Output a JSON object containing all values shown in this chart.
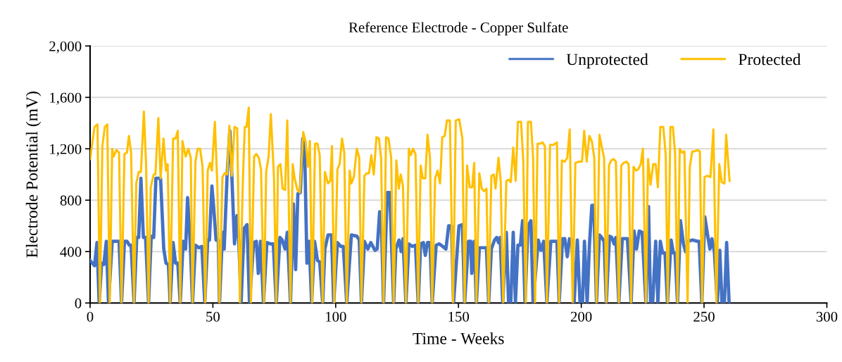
{
  "chart_data": {
    "type": "line",
    "title": "Reference Electrode - Copper Sulfate",
    "xlabel": "Time - Weeks",
    "ylabel": "Electrode Potential (mV)",
    "xlim": [
      0,
      300
    ],
    "xticks": [
      0,
      50,
      100,
      150,
      200,
      250,
      300
    ],
    "ylim": [
      0,
      2000
    ],
    "yticks": [
      0,
      400,
      800,
      {
        "value": 1200,
        "label": "1,200"
      },
      {
        "value": 1600,
        "label": "1,600"
      },
      {
        "value": 2000,
        "label": "2,000"
      }
    ],
    "grid": "y",
    "legend": "top right",
    "line_style": "solid",
    "marker": "none",
    "series": [
      {
        "name": "Unprotected",
        "color": "#4472c4",
        "x": [
          0,
          1.8,
          2.8,
          3.7,
          4.7,
          5.6,
          6.6,
          7.5,
          9,
          10.2,
          11.8,
          12.8,
          14,
          15,
          16,
          16.7,
          17.9,
          19,
          19.8,
          20.7,
          21.7,
          22.6,
          23.8,
          24.9,
          25.9,
          26.8,
          28.7,
          30,
          30.9,
          31.9,
          32.6,
          33.8,
          34.8,
          35.7,
          36.7,
          37.9,
          38.9,
          39.7,
          40.8,
          41.7,
          42.9,
          44.3,
          45.5,
          46.7,
          47.9,
          48.6,
          49.6,
          50.3,
          51.3,
          52.2,
          52.7,
          53.9,
          54.6,
          55.8,
          56.9,
          57.7,
          58.8,
          59.8,
          60.6,
          61.5,
          62.7,
          63.9,
          64.9,
          66.6,
          67.7,
          68.5,
          69.4,
          70.6,
          72,
          73.4,
          74.6,
          75.8,
          77.3,
          78.2,
          79.4,
          80.3,
          81.6,
          82.8,
          83.7,
          84.6,
          85.6,
          86.6,
          87.3,
          88.3,
          89.2,
          90.2,
          91.4,
          92.6,
          93.5,
          94.7,
          95.6,
          96.9,
          98.3,
          99.2,
          100.7,
          102.1,
          103.1,
          104.5,
          106.4,
          108.6,
          109.6,
          110.5,
          111.7,
          113.1,
          114.3,
          116,
          116.9,
          117.9,
          118.5,
          119.5,
          121,
          122,
          123.6,
          124.5,
          125.8,
          126.7,
          127.4,
          128.6,
          129.8,
          131.2,
          132.5,
          133.6,
          134.6,
          135.7,
          136.5,
          137.4,
          138.4,
          139.3,
          140.9,
          142.2,
          143.6,
          144.9,
          146,
          147.2,
          148,
          150.2,
          151.6,
          152.5,
          154.1,
          155,
          155.4,
          156.4,
          157.3,
          158.5,
          161.4,
          162.3,
          163.4,
          164.7,
          165.6,
          166.3,
          167,
          168,
          169.5,
          170.4,
          171.3,
          172.3,
          173.2,
          174.2,
          175.2,
          176.1,
          177.1,
          178.3,
          179.5,
          180.4,
          182.5,
          183.6,
          184.7,
          186,
          187.6,
          190.1,
          191,
          192.4,
          193.3,
          194.3,
          195.2,
          196.2,
          197.1,
          198.4,
          199.5,
          200.5,
          201.3,
          202.4,
          203.3,
          204.3,
          205.1,
          206.2,
          207.4,
          208.3,
          209.3,
          210.2,
          211.5,
          212.4,
          213.4,
          214.1,
          215.3,
          216.7,
          218.8,
          220.3,
          221.5,
          222.5,
          223.6,
          224.8,
          226.3,
          227.4,
          228.2,
          229.1,
          230.3,
          231.2,
          232.2,
          233.1,
          234.1,
          235.1,
          236.6,
          237.5,
          238.2,
          239.2,
          240.4,
          241.6,
          242.5,
          243.5,
          245.3,
          247.3,
          248,
          249.1,
          250.3,
          251.6,
          252.4,
          253.2,
          254.2,
          255.4,
          256.4,
          257.3,
          258.3,
          259.2,
          260.2
        ],
        "values": [
          330,
          290,
          470,
          0,
          310,
          300,
          480,
          0,
          480,
          480,
          480,
          0,
          480,
          480,
          450,
          450,
          0,
          510,
          510,
          970,
          510,
          510,
          0,
          520,
          510,
          970,
          970,
          420,
          310,
          300,
          0,
          470,
          310,
          310,
          0,
          480,
          420,
          820,
          460,
          0,
          450,
          430,
          440,
          0,
          490,
          490,
          910,
          750,
          490,
          490,
          0,
          550,
          420,
          1000,
          1340,
          1000,
          460,
          680,
          460,
          0,
          580,
          610,
          0,
          470,
          480,
          230,
          480,
          0,
          470,
          460,
          460,
          0,
          510,
          490,
          420,
          550,
          0,
          770,
          260,
          850,
          860,
          1280,
          1260,
          310,
          480,
          0,
          480,
          330,
          320,
          0,
          420,
          530,
          530,
          0,
          470,
          440,
          440,
          0,
          530,
          520,
          490,
          0,
          480,
          420,
          470,
          410,
          420,
          710,
          700,
          0,
          860,
          860,
          0,
          420,
          490,
          400,
          500,
          0,
          460,
          440,
          450,
          0,
          460,
          470,
          370,
          470,
          470,
          0,
          450,
          460,
          440,
          420,
          600,
          600,
          0,
          600,
          610,
          0,
          480,
          480,
          230,
          480,
          0,
          430,
          430,
          0,
          420,
          490,
          510,
          470,
          510,
          0,
          550,
          0,
          0,
          550,
          0,
          450,
          450,
          640,
          0,
          600,
          640,
          0,
          490,
          410,
          480,
          0,
          480,
          480,
          0,
          500,
          500,
          360,
          500,
          490,
          0,
          490,
          0,
          0,
          480,
          0,
          440,
          760,
          760,
          0,
          530,
          510,
          480,
          0,
          520,
          510,
          460,
          510,
          0,
          500,
          500,
          0,
          560,
          420,
          560,
          550,
          0,
          750,
          0,
          0,
          480,
          0,
          480,
          390,
          390,
          0,
          490,
          390,
          390,
          0,
          640,
          460,
          400,
          480,
          490,
          480,
          480,
          0,
          670,
          510,
          420,
          500,
          400,
          0,
          410,
          0,
          0,
          470,
          0
        ]
      },
      {
        "name": "Protected",
        "color": "#ffc000",
        "x": [
          0,
          1.8,
          3,
          4,
          5,
          6,
          7,
          8,
          9,
          9.6,
          10.7,
          11.8,
          12.8,
          14,
          15,
          15.8,
          16.7,
          17.9,
          18.8,
          19.8,
          20.7,
          21.9,
          22.8,
          23.8,
          24.7,
          25.9,
          26.6,
          27.8,
          28.7,
          29.9,
          30.9,
          31.6,
          32.6,
          33.8,
          34.8,
          35.7,
          36.7,
          37.6,
          38.9,
          40,
          41,
          41.7,
          42.9,
          43.8,
          44.8,
          45.8,
          46.9,
          47.9,
          48.8,
          49.6,
          50.8,
          51.8,
          52.7,
          53.9,
          54.8,
          55.8,
          56.7,
          57.7,
          58.8,
          59.9,
          61,
          62.2,
          63,
          63.7,
          64.6,
          65.5,
          66.8,
          67.7,
          68.7,
          69.6,
          70.8,
          71.7,
          72.7,
          73.6,
          74.9,
          75.8,
          76.5,
          77.5,
          78.4,
          79.4,
          80.3,
          81.6,
          82.5,
          83.3,
          84.4,
          85.4,
          86.8,
          87.8,
          88.7,
          89.5,
          90.4,
          91.6,
          92.6,
          93.5,
          94.7,
          95.6,
          96.9,
          97.8,
          98.5,
          99.4,
          100.7,
          101.6,
          102.6,
          103.5,
          104.5,
          105.7,
          106.4,
          107.4,
          108.6,
          109.6,
          110.5,
          111.7,
          112.6,
          113.6,
          114.5,
          115.5,
          116.6,
          117.6,
          118.5,
          119.5,
          120.5,
          121.5,
          122.6,
          123.6,
          124.7,
          125.7,
          126.5,
          127.4,
          128.6,
          129.8,
          130.6,
          131.5,
          132.5,
          133.6,
          134.6,
          135.5,
          136.5,
          137.4,
          138.4,
          139.3,
          140.5,
          141.5,
          142.5,
          143.4,
          144.4,
          145.3,
          146.5,
          147.8,
          148.9,
          150.3,
          151.6,
          152.5,
          153.5,
          154.6,
          155.6,
          156.4,
          157.3,
          158.5,
          159.5,
          160.4,
          161.4,
          162.3,
          163.4,
          164.4,
          165.1,
          166.3,
          167.2,
          168.2,
          169.5,
          170.4,
          171.3,
          172.3,
          173.3,
          174.2,
          175.5,
          176.4,
          177.4,
          178.3,
          179.5,
          180.4,
          181.2,
          182.2,
          183.3,
          184.2,
          185.2,
          186,
          187.3,
          188.6,
          190.1,
          191,
          192.1,
          193.3,
          194.3,
          195.3,
          196.5,
          197.6,
          199,
          199.5,
          200.3,
          201.2,
          202.2,
          203.3,
          204.3,
          205.3,
          206.2,
          207.4,
          208.3,
          209.3,
          210.2,
          211.3,
          212.2,
          213.2,
          214.1,
          215.3,
          216.3,
          217.2,
          218.4,
          219.3,
          220.3,
          221.3,
          222.3,
          223.2,
          224.2,
          225.1,
          226.3,
          227.2,
          228.2,
          229.3,
          230.3,
          231.2,
          232.2,
          233.4,
          234.4,
          235.2,
          236.3,
          237.3,
          238.2,
          239.2,
          240.1,
          241.1,
          242,
          243.3,
          244.2,
          245.2,
          246.1,
          247.3,
          248.3,
          249.2,
          250.2,
          251.3,
          252.6,
          253.8,
          255,
          256.2,
          257.2,
          258.3,
          259,
          260.4
        ],
        "values": [
          1120,
          1370,
          1390,
          0,
          1220,
          1370,
          1390,
          0,
          1200,
          1140,
          1190,
          1170,
          0,
          1160,
          1170,
          1300,
          1170,
          0,
          930,
          1020,
          1020,
          1490,
          1080,
          0,
          900,
          1000,
          1000,
          1440,
          970,
          1280,
          1030,
          1080,
          0,
          1280,
          1280,
          1340,
          0,
          1260,
          1140,
          1200,
          1130,
          0,
          1100,
          1200,
          1200,
          1060,
          0,
          1030,
          1090,
          1030,
          1410,
          930,
          0,
          980,
          1010,
          1000,
          1380,
          990,
          1370,
          1360,
          0,
          950,
          1370,
          1370,
          1520,
          0,
          1140,
          1160,
          1130,
          1040,
          0,
          1020,
          1140,
          1470,
          970,
          0,
          1060,
          1080,
          890,
          880,
          1420,
          0,
          1080,
          970,
          880,
          860,
          1330,
          1250,
          1060,
          1260,
          0,
          1240,
          1240,
          1150,
          0,
          1020,
          930,
          950,
          1220,
          0,
          1040,
          1080,
          1280,
          1170,
          0,
          1030,
          930,
          980,
          1200,
          1130,
          0,
          990,
          1010,
          1010,
          1150,
          1000,
          1290,
          1280,
          1130,
          0,
          1290,
          1280,
          1130,
          0,
          1110,
          890,
          1000,
          910,
          0,
          1200,
          1150,
          1200,
          1160,
          0,
          1070,
          970,
          970,
          1310,
          1130,
          0,
          970,
          1030,
          930,
          1290,
          1300,
          1420,
          1420,
          0,
          1420,
          1430,
          1280,
          0,
          1070,
          900,
          900,
          1090,
          0,
          1010,
          890,
          870,
          890,
          0,
          990,
          1000,
          890,
          1130,
          950,
          0,
          950,
          960,
          940,
          1210,
          950,
          1410,
          1410,
          1100,
          0,
          1410,
          1410,
          1130,
          0,
          1240,
          1240,
          1250,
          1220,
          0,
          1230,
          1230,
          1250,
          0,
          1110,
          1100,
          1130,
          1350,
          0,
          1090,
          1100,
          1100,
          1100,
          1340,
          1100,
          1300,
          1260,
          1130,
          0,
          1310,
          1220,
          1130,
          0,
          1070,
          1110,
          1120,
          1100,
          0,
          1070,
          1090,
          1100,
          1080,
          0,
          1060,
          1030,
          1040,
          1080,
          1200,
          0,
          1120,
          920,
          1080,
          1080,
          900,
          1370,
          1370,
          1150,
          0,
          1370,
          1370,
          1170,
          0,
          1200,
          1170,
          1180,
          0,
          1060,
          1180,
          1180,
          1190,
          1180,
          0,
          980,
          990,
          980,
          1350,
          0,
          1080,
          940,
          930,
          1310,
          950
        ]
      }
    ]
  }
}
